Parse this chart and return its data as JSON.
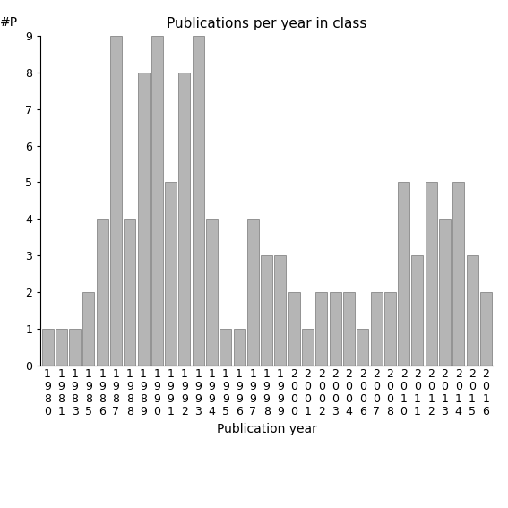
{
  "title": "Publications per year in class",
  "xlabel": "Publication year",
  "ylabel": "#P",
  "years": [
    "1980",
    "1981",
    "1983",
    "1985",
    "1986",
    "1987",
    "1988",
    "1989",
    "1990",
    "1991",
    "1992",
    "1993",
    "1994",
    "1995",
    "1996",
    "1997",
    "1998",
    "1999",
    "2000",
    "2001",
    "2002",
    "2003",
    "2004",
    "2006",
    "2007",
    "2008",
    "2010",
    "2011",
    "2012",
    "2013",
    "2014",
    "2015",
    "2016"
  ],
  "values": [
    1,
    1,
    1,
    2,
    4,
    9,
    4,
    8,
    9,
    5,
    8,
    9,
    4,
    1,
    1,
    4,
    3,
    3,
    2,
    1,
    2,
    2,
    2,
    1,
    2,
    2,
    5,
    3,
    5,
    4,
    5,
    3,
    2
  ],
  "bar_color": "#b5b5b5",
  "bar_edge_color": "#777777",
  "ylim": [
    0,
    9
  ],
  "yticks": [
    0,
    1,
    2,
    3,
    4,
    5,
    6,
    7,
    8,
    9
  ],
  "background_color": "#ffffff",
  "title_fontsize": 11,
  "axis_label_fontsize": 10,
  "tick_label_fontsize": 9
}
